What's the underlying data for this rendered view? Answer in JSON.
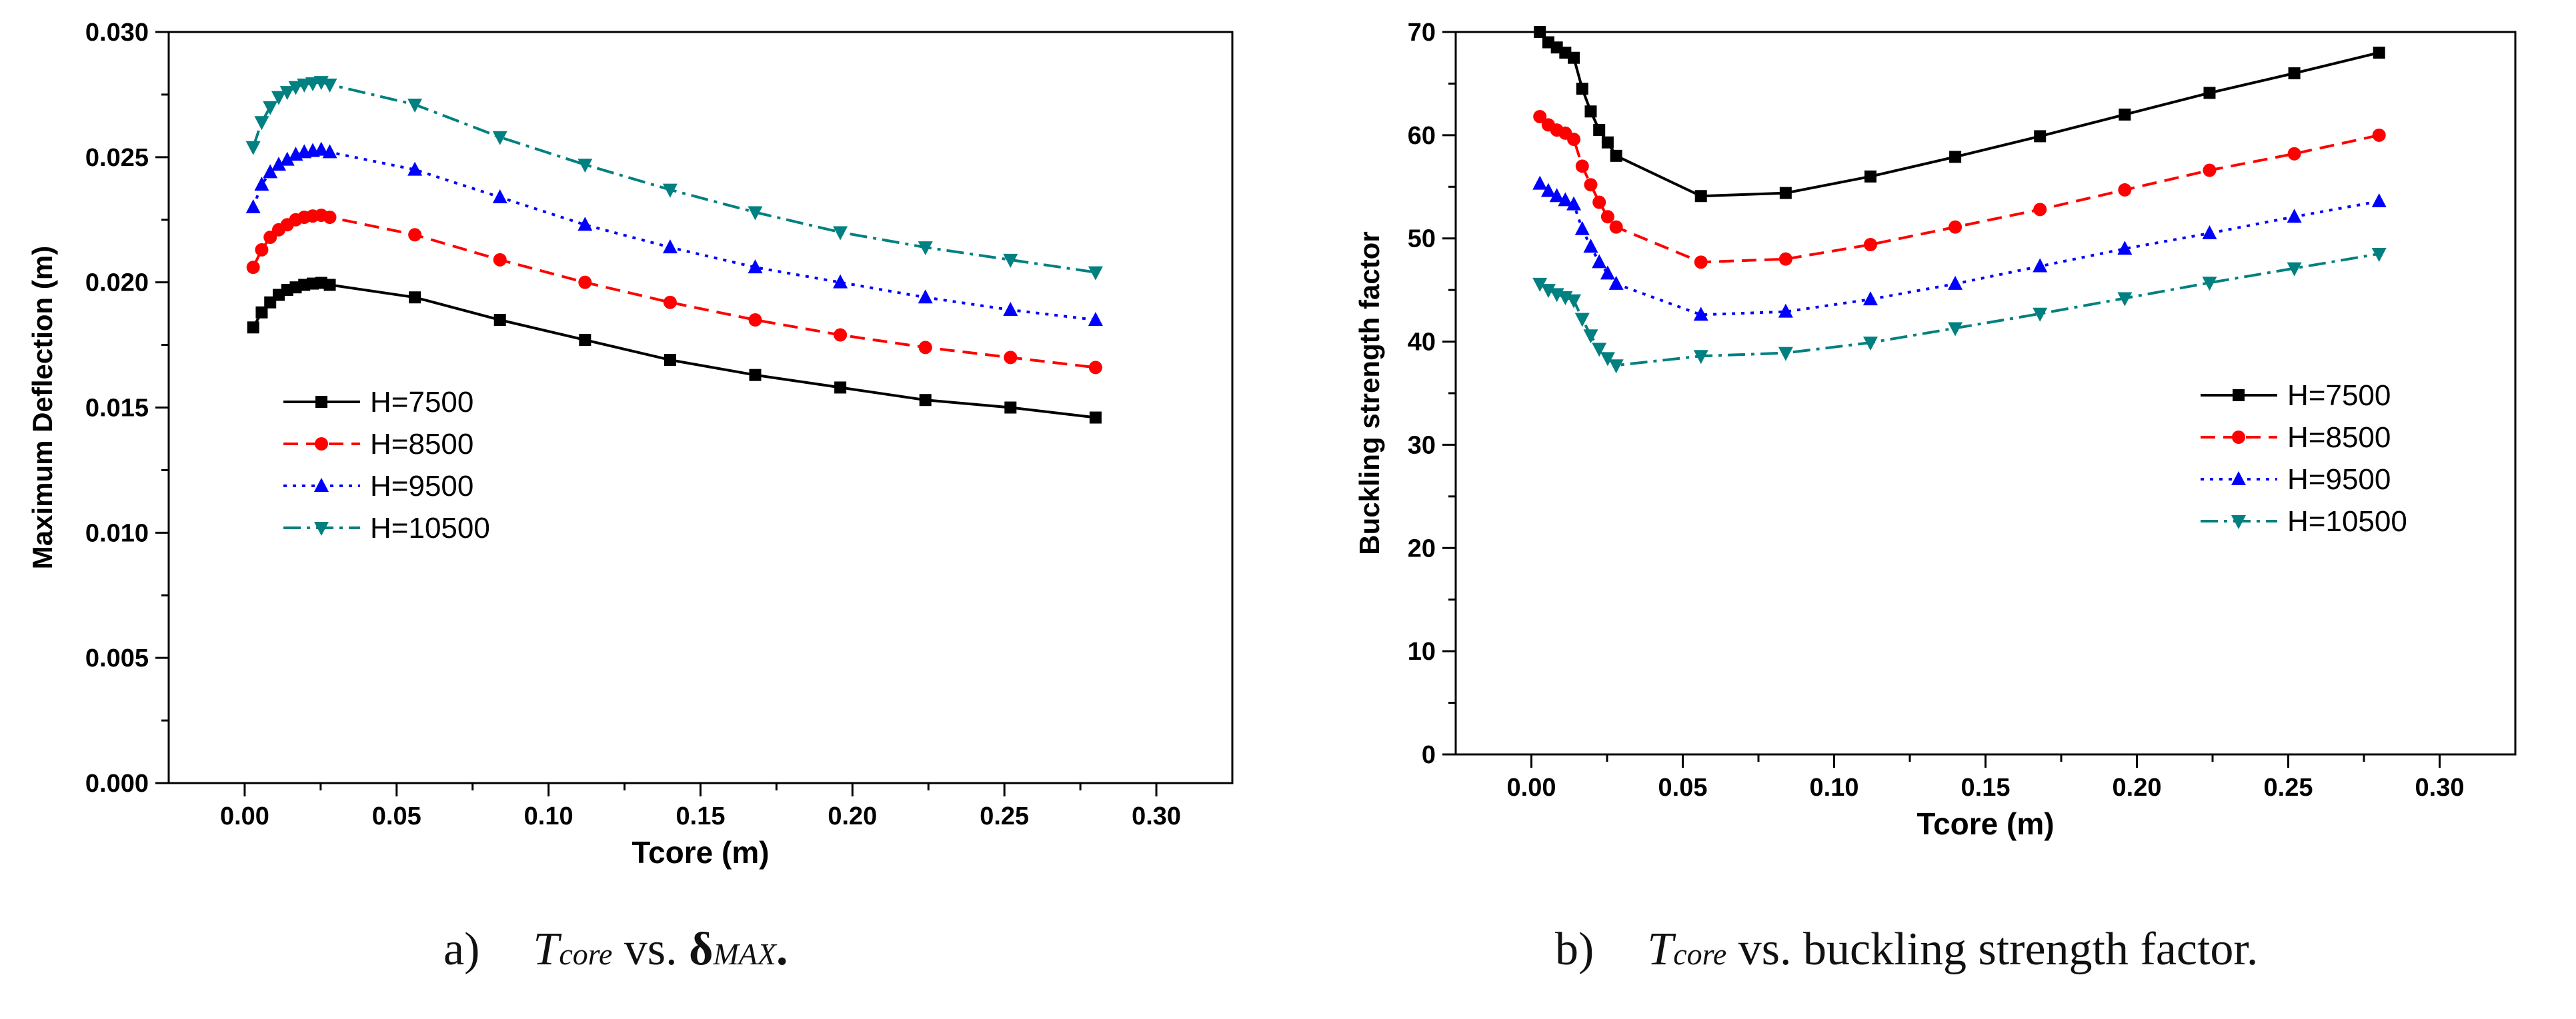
{
  "charts": [
    {
      "type": "line",
      "ylabel": "Maximum Deflection (m)",
      "xlabel": "Tcore (m)",
      "xlim": [
        -0.025,
        0.325
      ],
      "ylim": [
        0.0,
        0.03
      ],
      "xticks": [
        "0.00",
        "0.05",
        "0.10",
        "0.15",
        "0.20",
        "0.25",
        "0.30"
      ],
      "yticks": [
        "0.000",
        "0.005",
        "0.010",
        "0.015",
        "0.020",
        "0.025",
        "0.030"
      ],
      "legend_position": "left-middle",
      "x": [
        0.0028,
        0.0056,
        0.0084,
        0.0112,
        0.014,
        0.0168,
        0.0196,
        0.0224,
        0.0252,
        0.028,
        0.056,
        0.084,
        0.112,
        0.14,
        0.168,
        0.196,
        0.224,
        0.252,
        0.28
      ],
      "series": [
        {
          "name": "H=7500",
          "color": "#000000",
          "marker": "square",
          "dash": "solid",
          "values": [
            0.0182,
            0.0188,
            0.0192,
            0.0195,
            0.0197,
            0.0198,
            0.0199,
            0.01995,
            0.01998,
            0.0199,
            0.0194,
            0.0185,
            0.0177,
            0.0169,
            0.0163,
            0.0158,
            0.0153,
            0.015,
            0.0146
          ]
        },
        {
          "name": "H=8500",
          "color": "#ff0000",
          "marker": "circle",
          "dash": "dashed",
          "values": [
            0.0206,
            0.0213,
            0.0218,
            0.0221,
            0.0223,
            0.0225,
            0.0226,
            0.02265,
            0.02268,
            0.0226,
            0.0219,
            0.0209,
            0.02,
            0.0192,
            0.0185,
            0.0179,
            0.0174,
            0.017,
            0.0166
          ]
        },
        {
          "name": "H=9500",
          "color": "#0000ff",
          "marker": "triangle-up",
          "dash": "dotted",
          "values": [
            0.023,
            0.0239,
            0.0244,
            0.0247,
            0.0249,
            0.0251,
            0.0252,
            0.02525,
            0.0253,
            0.0252,
            0.0245,
            0.0234,
            0.0223,
            0.0214,
            0.0206,
            0.02,
            0.0194,
            0.0189,
            0.0185
          ]
        },
        {
          "name": "H=10500",
          "color": "#008080",
          "marker": "triangle-down",
          "dash": "dashdot",
          "values": [
            0.0254,
            0.0264,
            0.027,
            0.0274,
            0.0276,
            0.0278,
            0.0279,
            0.02795,
            0.028,
            0.0279,
            0.0271,
            0.0258,
            0.0247,
            0.0237,
            0.0228,
            0.022,
            0.0214,
            0.0209,
            0.0204
          ]
        }
      ]
    },
    {
      "type": "line",
      "ylabel": "Buckling strength factor",
      "xlabel": "Tcore (m)",
      "xlim": [
        -0.025,
        0.325
      ],
      "ylim": [
        0,
        70
      ],
      "xticks": [
        "0.00",
        "0.05",
        "0.10",
        "0.15",
        "0.20",
        "0.25",
        "0.30"
      ],
      "yticks": [
        "0",
        "10",
        "20",
        "30",
        "40",
        "50",
        "60",
        "70"
      ],
      "legend_position": "right-middle",
      "x": [
        0.0028,
        0.0056,
        0.0084,
        0.0112,
        0.014,
        0.0168,
        0.0196,
        0.0224,
        0.0252,
        0.028,
        0.056,
        0.084,
        0.112,
        0.14,
        0.168,
        0.196,
        0.224,
        0.252,
        0.28
      ],
      "series": [
        {
          "name": "H=7500",
          "color": "#000000",
          "marker": "square",
          "dash": "solid",
          "values": [
            70.0,
            69.0,
            68.5,
            68.0,
            67.5,
            64.5,
            62.3,
            60.5,
            59.3,
            58.0,
            54.1,
            54.4,
            56.0,
            57.9,
            59.9,
            62.0,
            64.1,
            66.0,
            68.0
          ]
        },
        {
          "name": "H=8500",
          "color": "#ff0000",
          "marker": "circle",
          "dash": "dashed",
          "values": [
            61.8,
            61.0,
            60.5,
            60.2,
            59.6,
            57.0,
            55.2,
            53.5,
            52.1,
            51.1,
            47.7,
            48.0,
            49.4,
            51.1,
            52.8,
            54.7,
            56.6,
            58.2,
            60.0
          ]
        },
        {
          "name": "H=9500",
          "color": "#0000ff",
          "marker": "triangle-up",
          "dash": "dotted",
          "values": [
            55.3,
            54.6,
            54.1,
            53.7,
            53.3,
            50.9,
            49.2,
            47.7,
            46.6,
            45.6,
            42.6,
            42.9,
            44.1,
            45.6,
            47.3,
            49.0,
            50.5,
            52.1,
            53.6
          ]
        },
        {
          "name": "H=10500",
          "color": "#008080",
          "marker": "triangle-down",
          "dash": "dashdot",
          "values": [
            45.6,
            45.0,
            44.6,
            44.3,
            44.0,
            42.2,
            40.6,
            39.3,
            38.4,
            37.7,
            38.6,
            38.9,
            39.9,
            41.3,
            42.7,
            44.2,
            45.7,
            47.1,
            48.5
          ]
        }
      ]
    }
  ],
  "captions": [
    {
      "label": "a)",
      "var": "T",
      "var_sub": "core",
      "mid": " vs. ",
      "end_sym": "δ",
      "end_sub": "MAX",
      "end": "."
    },
    {
      "label": "b)",
      "var": "T",
      "var_sub": "core",
      "mid": " vs. buckling strength factor."
    }
  ]
}
